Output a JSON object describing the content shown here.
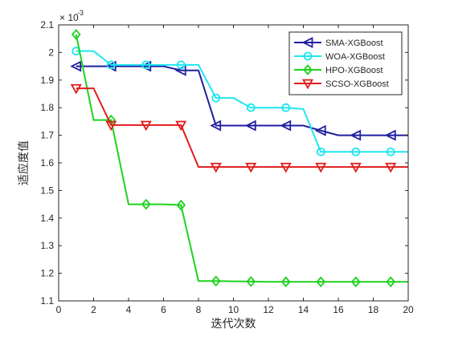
{
  "chart_data": {
    "type": "line",
    "title": "",
    "xlabel": "迭代次数",
    "ylabel": "适应度值",
    "y_exponent_label": "× 10",
    "y_exponent_power": "-3",
    "xlim": [
      0,
      20
    ],
    "ylim": [
      1.1,
      2.1
    ],
    "xticks": [
      0,
      2,
      4,
      6,
      8,
      10,
      12,
      14,
      16,
      18,
      20
    ],
    "yticks": [
      1.1,
      1.2,
      1.3,
      1.4,
      1.5,
      1.6,
      1.7,
      1.8,
      1.9,
      2.0,
      2.1
    ],
    "xtick_labels": [
      "0",
      "2",
      "4",
      "6",
      "8",
      "10",
      "12",
      "14",
      "16",
      "18",
      "20"
    ],
    "ytick_labels": [
      "1.1",
      "1.2",
      "1.3",
      "1.4",
      "1.5",
      "1.6",
      "1.7",
      "1.8",
      "1.9",
      "2",
      "2.1"
    ],
    "grid": false,
    "legend_position": "top-right",
    "series": [
      {
        "name": "SMA-XGBoost",
        "color": "#1f1fa0",
        "marker": "triangle-left",
        "x": [
          1,
          2,
          3,
          4,
          5,
          6,
          7,
          8,
          9,
          10,
          11,
          12,
          13,
          14,
          15,
          16,
          17,
          18,
          19,
          20
        ],
        "y": [
          1.95,
          1.95,
          1.95,
          1.95,
          1.95,
          1.95,
          1.935,
          1.935,
          1.735,
          1.735,
          1.735,
          1.735,
          1.735,
          1.735,
          1.717,
          1.7,
          1.7,
          1.7,
          1.7,
          1.7
        ],
        "markers_x": [
          1,
          3,
          5,
          7,
          9,
          11,
          13,
          15,
          17,
          19
        ],
        "markers_y": [
          1.95,
          1.95,
          1.95,
          1.935,
          1.735,
          1.735,
          1.735,
          1.717,
          1.7,
          1.7
        ]
      },
      {
        "name": "WOA-XGBoost",
        "color": "#1ee6f0",
        "marker": "circle",
        "x": [
          1,
          2,
          3,
          4,
          5,
          6,
          7,
          8,
          9,
          10,
          11,
          12,
          13,
          14,
          15,
          16,
          17,
          18,
          19,
          20
        ],
        "y": [
          2.005,
          2.005,
          1.955,
          1.955,
          1.955,
          1.955,
          1.955,
          1.955,
          1.835,
          1.835,
          1.8,
          1.8,
          1.8,
          1.795,
          1.64,
          1.64,
          1.64,
          1.64,
          1.64,
          1.64
        ],
        "markers_x": [
          1,
          3,
          5,
          7,
          9,
          11,
          13,
          15,
          17,
          19
        ],
        "markers_y": [
          2.005,
          1.955,
          1.955,
          1.955,
          1.835,
          1.8,
          1.8,
          1.64,
          1.64,
          1.64
        ]
      },
      {
        "name": "HPO-XGBoost",
        "color": "#1ed21e",
        "marker": "diamond",
        "x": [
          1,
          2,
          3,
          4,
          5,
          6,
          7,
          8,
          9,
          10,
          11,
          12,
          13,
          14,
          15,
          16,
          17,
          18,
          19,
          20
        ],
        "y": [
          2.065,
          1.755,
          1.755,
          1.45,
          1.45,
          1.45,
          1.447,
          1.172,
          1.172,
          1.171,
          1.17,
          1.169,
          1.169,
          1.169,
          1.169,
          1.169,
          1.169,
          1.169,
          1.169,
          1.169
        ],
        "markers_x": [
          1,
          3,
          5,
          7,
          9,
          11,
          13,
          15,
          17,
          19
        ],
        "markers_y": [
          2.065,
          1.755,
          1.45,
          1.447,
          1.172,
          1.17,
          1.169,
          1.169,
          1.169,
          1.169
        ]
      },
      {
        "name": "SCSO-XGBoost",
        "color": "#e01c1c",
        "marker": "triangle-down",
        "x": [
          1,
          2,
          3,
          4,
          5,
          6,
          7,
          8,
          9,
          10,
          11,
          12,
          13,
          14,
          15,
          16,
          17,
          18,
          19,
          20
        ],
        "y": [
          1.87,
          1.87,
          1.737,
          1.737,
          1.737,
          1.737,
          1.737,
          1.585,
          1.585,
          1.585,
          1.585,
          1.585,
          1.585,
          1.585,
          1.585,
          1.585,
          1.585,
          1.585,
          1.585,
          1.585
        ],
        "markers_x": [
          1,
          3,
          5,
          7,
          9,
          11,
          13,
          15,
          17,
          19
        ],
        "markers_y": [
          1.87,
          1.737,
          1.737,
          1.737,
          1.585,
          1.585,
          1.585,
          1.585,
          1.585,
          1.585
        ]
      }
    ]
  }
}
